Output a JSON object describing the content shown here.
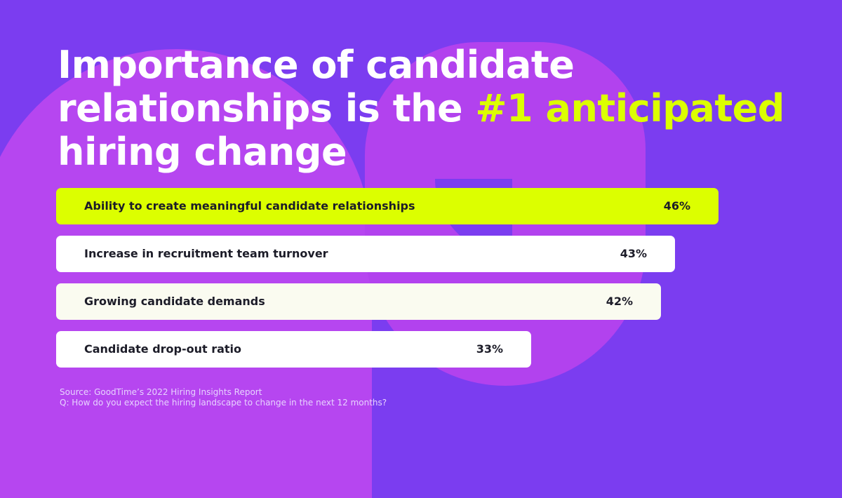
{
  "headline": {
    "line1": "Importance of candidate",
    "line2_prefix": "relationships is the ",
    "line2_highlight": "#1 anticipated",
    "line3": "hiring change"
  },
  "colors": {
    "background": "#7b3df0",
    "shape": "#b646f0",
    "highlight": "#dcff00",
    "bar": "#ffffff",
    "bar_tint": "#fafbf0"
  },
  "chart_data": {
    "type": "bar",
    "orientation": "horizontal",
    "categories": [
      "Ability to create meaningful candidate relationships",
      "Increase in recruitment team turnover",
      "Growing candidate demands",
      "Candidate drop-out ratio"
    ],
    "values": [
      46,
      43,
      42,
      33
    ],
    "value_labels": [
      "46%",
      "43%",
      "42%",
      "33%"
    ],
    "unit": "%",
    "highlighted_index": 0
  },
  "footer": {
    "source": "Source: GoodTime’s 2022 Hiring Insights Report",
    "question": "Q: How do you expect the hiring landscape to change in the next 12 months?"
  }
}
